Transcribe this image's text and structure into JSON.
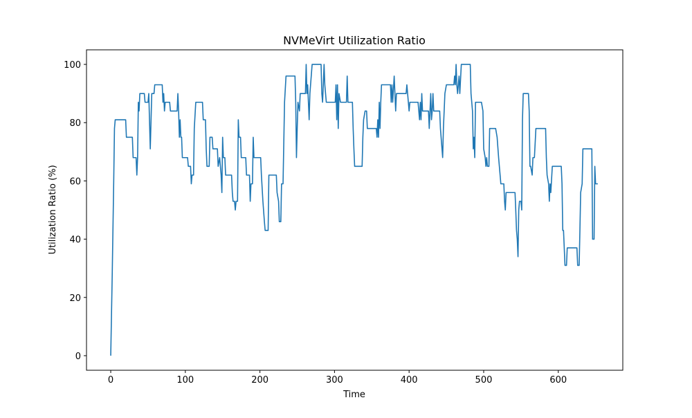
{
  "chart_data": {
    "type": "line",
    "title": "NVMeVirt Utilization Ratio",
    "xlabel": "Time",
    "ylabel": "Utilization Ratio (%)",
    "x": [
      0,
      2,
      4,
      5,
      6,
      20,
      21,
      29,
      30,
      34,
      35,
      36,
      37,
      38,
      39,
      45,
      46,
      50,
      51,
      53,
      55,
      58,
      59,
      69,
      70,
      71,
      72,
      73,
      79,
      80,
      89,
      90,
      91,
      92,
      93,
      94,
      95,
      96,
      103,
      104,
      107,
      108,
      109,
      111,
      112,
      114,
      123,
      124,
      127,
      128,
      129,
      132,
      133,
      136,
      137,
      143,
      144,
      146,
      148,
      149,
      150,
      151,
      153,
      154,
      162,
      163,
      164,
      166,
      167,
      168,
      170,
      171,
      172,
      174,
      175,
      181,
      182,
      186,
      187,
      188,
      190,
      191,
      192,
      201,
      202,
      204,
      206,
      207,
      211,
      212,
      222,
      223,
      225,
      226,
      228,
      229,
      231,
      233,
      235,
      247,
      248,
      249,
      250,
      251,
      253,
      254,
      261,
      262,
      263,
      264,
      265,
      266,
      267,
      270,
      282,
      283,
      284,
      285,
      286,
      287,
      289,
      301,
      302,
      303,
      304,
      305,
      306,
      308,
      316,
      317,
      318,
      324,
      325,
      326,
      327,
      337,
      338,
      339,
      341,
      343,
      344,
      356,
      357,
      358,
      359,
      360,
      361,
      362,
      363,
      375,
      376,
      377,
      378,
      380,
      381,
      382,
      383,
      396,
      397,
      399,
      400,
      401,
      412,
      413,
      414,
      415,
      416,
      417,
      418,
      426,
      427,
      428,
      429,
      430,
      431,
      432,
      433,
      441,
      442,
      445,
      446,
      448,
      450,
      460,
      461,
      462,
      463,
      464,
      465,
      467,
      468,
      470,
      482,
      483,
      485,
      486,
      487,
      488,
      489,
      497,
      499,
      500,
      502,
      503,
      504,
      505,
      507,
      508,
      516,
      518,
      520,
      521,
      523,
      527,
      528,
      529,
      530,
      542,
      543,
      544,
      545,
      546,
      547,
      548,
      550,
      551,
      552,
      553,
      560,
      561,
      562,
      563,
      565,
      566,
      568,
      570,
      583,
      584,
      585,
      587,
      588,
      589,
      590,
      592,
      604,
      605,
      606,
      607,
      609,
      611,
      612,
      625,
      626,
      628,
      629,
      630,
      632,
      633,
      645,
      646,
      648,
      649,
      650,
      653
    ],
    "series": [
      {
        "name": "Utilization Ratio",
        "color": "#1f77b4",
        "values": [
          0,
          28,
          60,
          78,
          81,
          81,
          75,
          75,
          68,
          68,
          62,
          68,
          87,
          84,
          90,
          90,
          87,
          87,
          90,
          71,
          90,
          90,
          93,
          93,
          87,
          90,
          84,
          87,
          87,
          84,
          84,
          90,
          84,
          75,
          81,
          75,
          75,
          68,
          68,
          65,
          65,
          59,
          62,
          62,
          78,
          87,
          87,
          81,
          81,
          71,
          65,
          65,
          75,
          75,
          71,
          71,
          65,
          68,
          62,
          56,
          75,
          68,
          68,
          62,
          62,
          56,
          53,
          53,
          50,
          53,
          53,
          81,
          75,
          75,
          68,
          68,
          62,
          62,
          53,
          59,
          59,
          75,
          68,
          68,
          62,
          53,
          46,
          43,
          43,
          62,
          62,
          56,
          53,
          46,
          46,
          59,
          59,
          87,
          96,
          96,
          87,
          68,
          78,
          87,
          84,
          90,
          90,
          100,
          90,
          93,
          87,
          81,
          90,
          100,
          100,
          90,
          87,
          93,
          100,
          93,
          87,
          87,
          93,
          81,
          93,
          78,
          90,
          87,
          87,
          96,
          87,
          87,
          78,
          71,
          65,
          65,
          75,
          81,
          84,
          84,
          78,
          78,
          75,
          81,
          75,
          87,
          78,
          87,
          93,
          93,
          87,
          93,
          87,
          96,
          90,
          84,
          90,
          90,
          93,
          87,
          84,
          87,
          87,
          84,
          81,
          87,
          81,
          90,
          84,
          84,
          78,
          84,
          90,
          81,
          84,
          90,
          84,
          84,
          78,
          68,
          78,
          90,
          93,
          93,
          96,
          93,
          100,
          93,
          90,
          96,
          90,
          100,
          100,
          90,
          84,
          71,
          75,
          68,
          87,
          87,
          84,
          71,
          68,
          65,
          68,
          65,
          65,
          78,
          78,
          75,
          68,
          65,
          59,
          59,
          53,
          50,
          56,
          56,
          50,
          43,
          40,
          34,
          50,
          53,
          53,
          50,
          81,
          90,
          90,
          84,
          65,
          65,
          62,
          68,
          68,
          78,
          78,
          68,
          62,
          59,
          53,
          59,
          56,
          65,
          65,
          59,
          43,
          43,
          31,
          31,
          37,
          37,
          31,
          31,
          43,
          56,
          59,
          71,
          71,
          40,
          40,
          65,
          59,
          59
        ]
      }
    ],
    "xlim": [
      -32.5,
      686.5
    ],
    "ylim": [
      -5,
      105
    ],
    "xticks": [
      0,
      100,
      200,
      300,
      400,
      500,
      600
    ],
    "yticks": [
      0,
      20,
      40,
      60,
      80,
      100
    ]
  }
}
